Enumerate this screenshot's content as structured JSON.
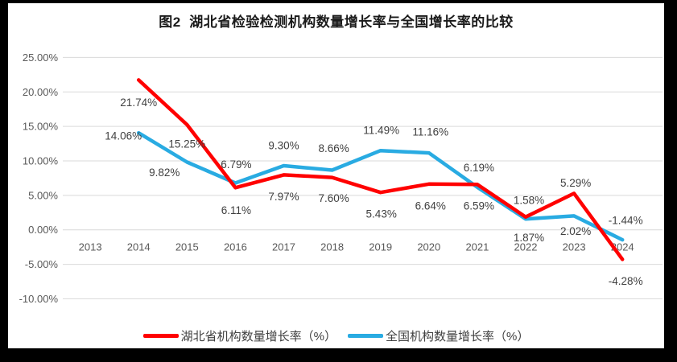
{
  "chart": {
    "title": "图2  湖北省检验检测机构数量增长率与全国增长率的比较"
  },
  "chart_data": {
    "type": "line",
    "title": "图2 湖北省检验检测机构数量增长率与全国增长率的比较",
    "categories": [
      "2013",
      "2014",
      "2015",
      "2016",
      "2017",
      "2018",
      "2019",
      "2020",
      "2021",
      "2022",
      "2023",
      "2024"
    ],
    "series": [
      {
        "name": "湖北省机构数量增长率（%）",
        "color": "#FF0000",
        "values": [
          null,
          21.74,
          15.25,
          6.11,
          7.97,
          7.6,
          5.43,
          6.64,
          6.59,
          1.87,
          5.29,
          -4.28
        ],
        "labels": [
          null,
          "21.74%",
          "15.25%",
          "6.11%",
          "7.97%",
          "7.60%",
          "5.43%",
          "6.64%",
          "6.59%",
          "1.87%",
          "5.29%",
          "-4.28%"
        ]
      },
      {
        "name": "全国机构数量增长率（%）",
        "color": "#29ABE2",
        "values": [
          null,
          14.06,
          9.82,
          6.79,
          9.3,
          8.66,
          11.49,
          11.16,
          6.19,
          1.58,
          2.02,
          -1.44
        ],
        "labels": [
          null,
          "14.06%",
          "9.82%",
          "6.79%",
          "9.30%",
          "8.66%",
          "11.49%",
          "11.16%",
          "6.19%",
          "1.58%",
          "2.02%",
          "-1.44%"
        ]
      }
    ],
    "y_axis": {
      "min": -10,
      "max": 25,
      "step": 5,
      "tick_labels": [
        "25.00%",
        "20.00%",
        "15.00%",
        "10.00%",
        "5.00%",
        "0.00%",
        "-5.00%",
        "-10.00%"
      ]
    },
    "grid": true,
    "legend_position": "bottom",
    "colors": {
      "grid": "#D9D9D9",
      "axis_text": "#595959",
      "label_text": "#404040",
      "title_text": "#1A1A1A",
      "background": "#FFFFFF",
      "frame": "#000000"
    }
  },
  "legend": {
    "items": [
      {
        "label": "湖北省机构数量增长率（%）",
        "color": "#FF0000"
      },
      {
        "label": "全国机构数量增长率（%）",
        "color": "#29ABE2"
      }
    ]
  }
}
